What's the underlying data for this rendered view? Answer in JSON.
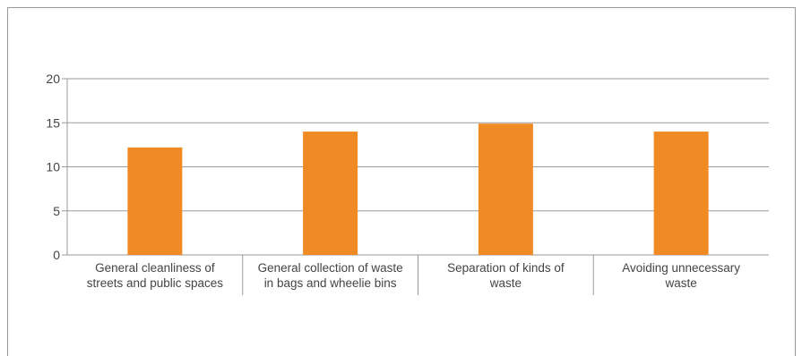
{
  "chart_data": {
    "type": "bar",
    "categories": [
      [
        "General cleanliness of",
        "streets and public spaces"
      ],
      [
        "General collection of waste",
        "in bags and wheelie bins"
      ],
      [
        "Separation of kinds of",
        "waste"
      ],
      [
        "Avoiding unnecessary",
        "waste"
      ]
    ],
    "values": [
      12.2,
      14.0,
      14.9,
      14.0
    ],
    "yticks": [
      "0",
      "5",
      "10",
      "15",
      "20"
    ],
    "ylim": [
      0,
      20
    ],
    "grid": true,
    "colors": {
      "bar": "#f08a24",
      "grid": "#9a9a9a",
      "axis": "#9a9a9a"
    }
  }
}
